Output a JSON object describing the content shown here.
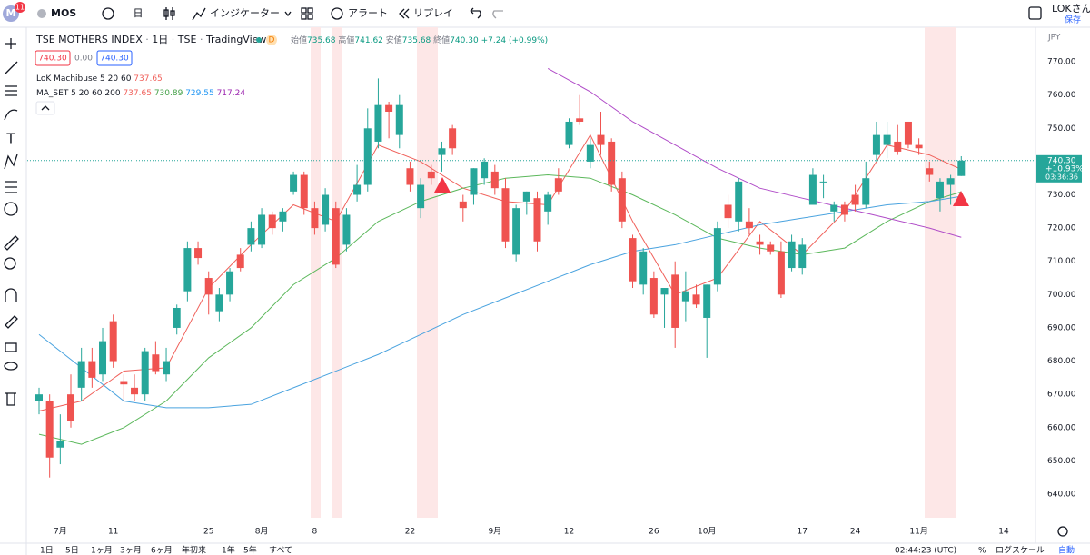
{
  "ui": {
    "app_badge": "M",
    "notification_count": "11",
    "symbol": "MOS",
    "interval_button": "日",
    "indicators": "インジケーター",
    "alerts": "アラート",
    "replay": "リプレイ",
    "user": "LOKさん",
    "save": "保存",
    "ranges": [
      "1日",
      "5日",
      "1ヶ月",
      "3ヶ月",
      "6ヶ月",
      "年初来",
      "1年",
      "5年",
      "すべて"
    ],
    "clock": "02:44:23 (UTC)",
    "percent": "%",
    "log_scale": "ログスケール",
    "auto": "自動"
  },
  "chart_data": {
    "type": "candlestick",
    "title": "TSE MOTHERS INDEX",
    "interval": "1日",
    "exchange": "TSE",
    "source": "TradingView",
    "badge": "D",
    "ohlc_labels": [
      "始値",
      "高値",
      "安値",
      "終値"
    ],
    "ohlc_value_labels": [
      "735.68",
      "741.62",
      "735.68",
      "740.30"
    ],
    "change": "+7.24 (+0.99%)",
    "price_boxes": [
      "740.30",
      "0.00",
      "740.30"
    ],
    "indicators": [
      {
        "name": "LoK Machibuse 5 20 60"
      },
      {
        "name": "MA_SET 5 20 60 200"
      }
    ],
    "currency": "JPY",
    "last_price": {
      "label": "740.30",
      "change": "+10.93%",
      "countdown": "03:36:36"
    },
    "up_color": "#26a69a",
    "down_color": "#ef5350",
    "ohlc": [
      [
        668,
        672,
        664,
        670
      ],
      [
        668,
        670,
        645,
        651
      ],
      [
        654,
        664,
        649,
        656
      ],
      [
        670,
        676,
        660,
        662
      ],
      [
        672,
        684,
        668,
        680
      ],
      [
        680,
        684,
        672,
        675
      ],
      [
        676,
        690,
        674,
        686
      ],
      [
        692,
        694,
        678,
        680
      ],
      [
        674,
        676,
        668,
        673
      ],
      [
        672,
        676,
        668,
        670
      ],
      [
        670,
        684,
        668,
        683
      ],
      [
        682,
        686,
        676,
        677
      ],
      [
        676,
        684,
        674,
        680
      ],
      [
        690,
        697,
        688,
        696
      ],
      [
        701,
        716,
        698,
        714
      ],
      [
        714,
        716,
        709,
        711
      ],
      [
        705,
        707,
        694,
        700
      ],
      [
        695,
        702,
        692,
        700
      ],
      [
        700,
        708,
        698,
        707
      ],
      [
        712,
        714,
        707,
        708
      ],
      [
        715,
        722,
        713,
        720
      ],
      [
        715,
        726,
        714,
        724
      ],
      [
        724,
        725,
        718,
        720
      ],
      [
        722,
        726,
        719,
        725
      ],
      [
        731,
        737,
        730,
        736
      ],
      [
        736,
        737,
        724,
        726
      ],
      [
        726,
        728,
        718,
        720
      ],
      [
        721,
        732,
        719,
        730
      ],
      [
        726,
        728,
        708,
        709
      ],
      [
        715,
        726,
        713,
        724
      ],
      [
        730,
        739,
        728,
        733
      ],
      [
        733,
        756,
        731,
        750
      ],
      [
        746,
        765,
        744,
        757
      ],
      [
        757,
        758,
        747,
        755
      ],
      [
        748,
        760,
        744,
        757
      ],
      [
        738,
        740,
        731,
        733
      ],
      [
        726,
        735,
        723,
        733
      ],
      [
        737,
        739,
        733,
        735
      ],
      [
        742,
        746,
        737,
        744
      ],
      [
        750,
        751,
        742,
        744
      ],
      [
        728,
        730,
        722,
        726
      ],
      [
        730,
        738,
        727,
        738
      ],
      [
        735,
        741,
        733,
        740
      ],
      [
        737,
        739,
        730,
        732
      ],
      [
        732,
        735,
        714,
        716
      ],
      [
        712,
        727,
        710,
        726
      ],
      [
        728,
        731,
        724,
        731
      ],
      [
        729,
        731,
        713,
        716
      ],
      [
        725,
        731,
        721,
        730
      ],
      [
        735,
        738,
        730,
        731
      ],
      [
        745,
        753,
        744,
        752
      ],
      [
        753,
        760,
        751,
        752
      ],
      [
        740,
        747,
        738,
        745
      ],
      [
        748,
        755,
        742,
        745
      ],
      [
        746,
        747,
        731,
        733
      ],
      [
        735,
        737,
        720,
        722
      ],
      [
        717,
        718,
        702,
        704
      ],
      [
        703,
        714,
        700,
        713
      ],
      [
        705,
        707,
        693,
        694
      ],
      [
        700,
        702,
        690,
        702
      ],
      [
        706,
        710,
        684,
        690
      ],
      [
        698,
        707,
        692,
        701
      ],
      [
        700,
        703,
        696,
        697
      ],
      [
        693,
        703,
        681,
        703
      ],
      [
        703,
        722,
        701,
        720
      ],
      [
        727,
        730,
        720,
        723
      ],
      [
        722,
        735,
        719,
        734
      ],
      [
        722,
        726,
        718,
        720
      ],
      [
        716,
        718,
        712,
        715
      ],
      [
        715,
        716,
        712,
        713
      ],
      [
        713,
        716,
        699,
        700
      ],
      [
        708,
        718,
        707,
        716
      ],
      [
        708,
        717,
        706,
        715
      ],
      [
        727,
        738,
        727,
        736
      ],
      [
        734,
        736,
        729,
        734
      ],
      [
        725,
        728,
        722,
        727
      ],
      [
        727,
        728,
        722,
        724
      ],
      [
        730,
        733,
        725,
        727
      ],
      [
        727,
        740,
        726,
        735
      ],
      [
        742,
        752,
        740,
        748
      ],
      [
        745,
        752,
        741,
        748
      ],
      [
        746,
        751,
        742,
        743
      ],
      [
        752,
        752,
        744,
        745
      ],
      [
        745,
        747,
        742,
        744
      ],
      [
        738,
        740,
        734,
        736
      ],
      [
        729,
        735,
        725,
        734
      ],
      [
        733,
        736,
        727,
        735
      ],
      [
        735.68,
        741.62,
        735.68,
        740.3
      ]
    ],
    "ma_index": [
      0,
      4,
      8,
      12,
      16,
      20,
      24,
      28,
      32,
      36,
      40,
      44,
      48,
      52,
      56,
      60,
      64,
      68,
      72,
      76,
      80,
      84,
      87
    ],
    "series": [
      {
        "color": "#f0605a",
        "values": [
          665,
          668,
          677,
          678,
          702,
          715,
          727,
          722,
          745,
          740,
          732,
          728,
          727,
          748,
          722,
          700,
          705,
          722,
          712,
          725,
          745,
          742,
          737.65
        ]
      },
      {
        "color": "#5cb85c",
        "values": [
          658,
          655,
          660,
          668,
          681,
          690,
          703,
          711,
          722,
          728,
          732,
          735,
          736,
          735,
          730,
          724,
          717,
          714,
          712,
          714,
          722,
          728,
          730.89
        ]
      },
      {
        "color": "#4aa3df",
        "values": [
          688,
          678,
          668,
          666,
          666,
          667,
          672,
          677,
          682,
          688,
          694,
          699,
          704,
          709,
          713,
          715,
          718,
          721,
          723,
          725,
          727,
          728,
          729.55
        ]
      },
      {
        "color": "#b04cc8",
        "values": [
          null,
          null,
          null,
          null,
          null,
          null,
          null,
          null,
          null,
          null,
          null,
          null,
          768,
          761,
          752,
          745,
          738,
          732,
          729,
          726,
          723,
          720,
          717.24
        ]
      }
    ],
    "ylim": [
      632.9,
      780.4
    ],
    "yticks": [
      {
        "value": 640,
        "label": "640.00"
      },
      {
        "value": 650,
        "label": "650.00"
      },
      {
        "value": 660,
        "label": "660.00"
      },
      {
        "value": 670,
        "label": "670.00"
      },
      {
        "value": 680,
        "label": "680.00"
      },
      {
        "value": 690,
        "label": "690.00"
      },
      {
        "value": 700,
        "label": "700.00"
      },
      {
        "value": 710,
        "label": "710.00"
      },
      {
        "value": 720,
        "label": "720.00"
      },
      {
        "value": 730,
        "label": "730.00"
      },
      {
        "value": 740,
        "label": "740.00"
      },
      {
        "value": 750,
        "label": "750.00"
      },
      {
        "value": 760,
        "label": "760.00"
      },
      {
        "value": 770,
        "label": "770.00"
      }
    ],
    "xticks": [
      {
        "value": 2,
        "label": "7月"
      },
      {
        "value": 7,
        "label": "11"
      },
      {
        "value": 16,
        "label": "25"
      },
      {
        "value": 21,
        "label": "8月"
      },
      {
        "value": 26,
        "label": "8"
      },
      {
        "value": 35,
        "label": "22"
      },
      {
        "value": 43,
        "label": "9月"
      },
      {
        "value": 50,
        "label": "12"
      },
      {
        "value": 58,
        "label": "26"
      },
      {
        "value": 63,
        "label": "10月"
      },
      {
        "value": 72,
        "label": "17"
      },
      {
        "value": 77,
        "label": "24"
      },
      {
        "value": 83,
        "label": "11月"
      },
      {
        "value": 91,
        "label": "14"
      }
    ]
  }
}
